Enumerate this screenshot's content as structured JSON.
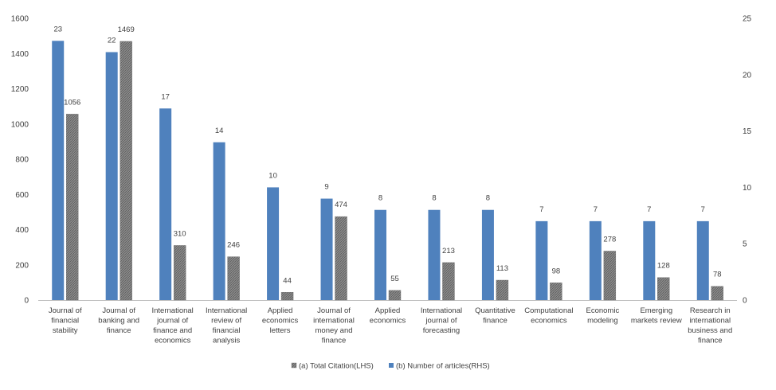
{
  "chart_data": {
    "type": "bar",
    "categories": [
      [
        "Journal of",
        "financial",
        "stability"
      ],
      [
        "Journal of",
        "banking and",
        "finance"
      ],
      [
        "International",
        "journal of",
        "finance and",
        "economics"
      ],
      [
        "International",
        "review of",
        "financial",
        "analysis"
      ],
      [
        "Applied",
        "economics",
        "letters"
      ],
      [
        "Journal of",
        "international",
        "money and",
        "finance"
      ],
      [
        "Applied",
        "economics"
      ],
      [
        "International",
        "journal of",
        "forecasting"
      ],
      [
        "Quantitative",
        "finance"
      ],
      [
        "Computational",
        "economics"
      ],
      [
        "Economic",
        "modeling"
      ],
      [
        "Emerging",
        "markets review"
      ],
      [
        "Research in",
        "international",
        "business and",
        "finance"
      ]
    ],
    "series": [
      {
        "name": "(a) Total Citation(LHS)",
        "axis": "left",
        "color": "#7f7f7f",
        "pattern": "hatched",
        "values": [
          1056,
          1469,
          310,
          246,
          44,
          474,
          55,
          213,
          113,
          98,
          278,
          128,
          78
        ]
      },
      {
        "name": "(b) Number of articles(RHS)",
        "axis": "right",
        "color": "#4f81bd",
        "values": [
          23,
          22,
          17,
          14,
          10,
          9,
          8,
          8,
          8,
          7,
          7,
          7,
          7
        ]
      }
    ],
    "ylim_left": [
      0,
      1600
    ],
    "yticks_left": [
      "0",
      "200",
      "400",
      "600",
      "800",
      "1000",
      "1200",
      "1400",
      "1600"
    ],
    "ylim_right": [
      0,
      25
    ],
    "yticks_right": [
      "0",
      "5",
      "10",
      "15",
      "20",
      "25"
    ],
    "grid": false,
    "legend_position": "bottom",
    "legend": [
      "(a) Total Citation(LHS)",
      "(b) Number of articles(RHS)"
    ]
  }
}
